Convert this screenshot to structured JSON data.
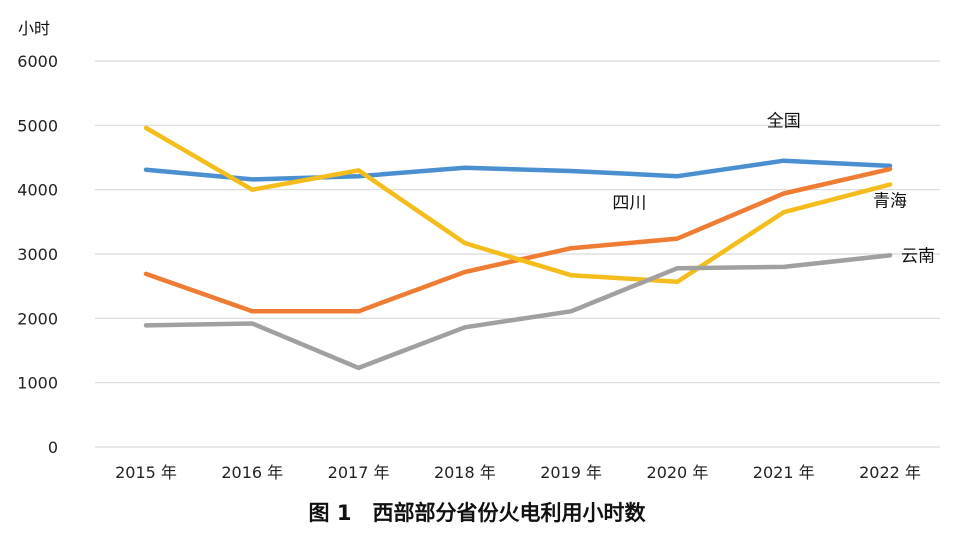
{
  "chart_data": {
    "type": "line",
    "title": "图 1　西部部分省份火电利用小时数",
    "ylabel": "小时",
    "xlabel": "",
    "ylim": [
      0,
      6000
    ],
    "yticks": [
      0,
      1000,
      2000,
      3000,
      4000,
      5000,
      6000
    ],
    "grid": true,
    "categories": [
      "2015 年",
      "2016 年",
      "2017 年",
      "2018 年",
      "2019 年",
      "2020 年",
      "2021 年",
      "2022 年"
    ],
    "series": [
      {
        "name": "全国",
        "color": "#4a8fd0",
        "label_anchor_index": 6,
        "values": [
          4310,
          4160,
          4210,
          4340,
          4290,
          4210,
          4450,
          4370
        ]
      },
      {
        "name": "四川",
        "color": "#ee7c33",
        "label_anchor_index": 5,
        "values": [
          2690,
          2110,
          2110,
          2720,
          3090,
          3240,
          3940,
          4320
        ]
      },
      {
        "name": "青海",
        "color": "#f4bd1c",
        "label_anchor_index": 7,
        "values": [
          4960,
          4000,
          4300,
          3170,
          2670,
          2570,
          3650,
          4080
        ]
      },
      {
        "name": "云南",
        "color": "#a0a0a0",
        "label_anchor_index": 7,
        "values": [
          1890,
          1920,
          1230,
          1860,
          2110,
          2780,
          2800,
          2980
        ]
      }
    ]
  }
}
